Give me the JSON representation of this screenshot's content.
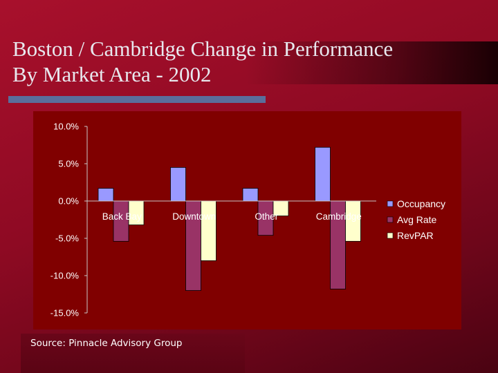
{
  "title_line1": "Boston / Cambridge Change in Performance",
  "title_line2": "By Market Area - 2002",
  "source": "Source: Pinnacle Advisory Group",
  "colors": {
    "background": "#a8102c",
    "panel": "#800000",
    "rule": "#5a6e9c",
    "occupancy": "#9999ff",
    "avg_rate": "#993366",
    "revpar": "#ffffcc"
  },
  "chart_data": {
    "type": "bar",
    "title": "",
    "xlabel": "",
    "ylabel": "",
    "categories": [
      "Back Bay",
      "Downtown",
      "Other",
      "Cambridge"
    ],
    "series": [
      {
        "name": "Occupancy",
        "values": [
          1.7,
          4.5,
          1.7,
          7.2
        ]
      },
      {
        "name": "Avg Rate",
        "values": [
          -5.4,
          -12.0,
          -4.6,
          -11.8
        ]
      },
      {
        "name": "RevPAR",
        "values": [
          -3.2,
          -8.0,
          -2.0,
          -5.4
        ]
      }
    ],
    "ylim": [
      -15,
      10
    ],
    "yticks": [
      10,
      5,
      0,
      -5,
      -10,
      -15
    ],
    "ytick_labels": [
      "10.0%",
      "5.0%",
      "0.0%",
      "-5.0%",
      "-10.0%",
      "-15.0%"
    ],
    "grid": false,
    "legend": "right"
  }
}
